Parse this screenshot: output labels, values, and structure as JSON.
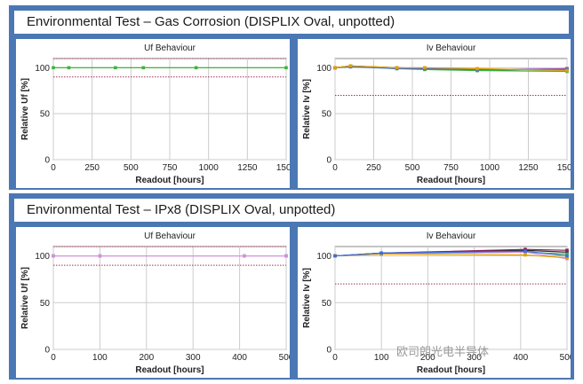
{
  "panels": [
    {
      "title": "Environmental Test – Gas Corrosion (DISPLIX Oval, unpotted)"
    },
    {
      "title": "Environmental Test – IPx8 (DISPLIX Oval, unpotted)"
    }
  ],
  "watermark": {
    "text": "欧司朗光电半导体"
  },
  "colors": {
    "panel_bg": "#4b78b4",
    "limit_line": "#a0305a",
    "grid": "#cccccc"
  },
  "chart_data": [
    {
      "type": "line",
      "title": "Uf Behaviour",
      "xlabel": "Readout [hours]",
      "ylabel": "Relative Uf [%]",
      "xlim": [
        0,
        1500
      ],
      "ylim": [
        0,
        110
      ],
      "xticks": [
        0,
        250,
        500,
        750,
        1000,
        1250,
        1500
      ],
      "yticks": [
        0,
        50,
        100
      ],
      "xtick_labels": [
        "0",
        "250",
        "500",
        "750",
        "1000",
        "1250",
        "1500"
      ],
      "ytick_labels": [
        "0",
        "50",
        "100"
      ],
      "limits": [
        110,
        90
      ],
      "series": [
        {
          "color": "#3cb43c",
          "x": [
            0,
            100,
            400,
            580,
            920,
            1500
          ],
          "y": [
            100,
            100,
            100,
            100,
            100,
            100
          ]
        }
      ]
    },
    {
      "type": "line",
      "title": "Iv Behaviour",
      "xlabel": "Readout [hours]",
      "ylabel": "Relative Iv [%]",
      "xlim": [
        0,
        1500
      ],
      "ylim": [
        0,
        110
      ],
      "xticks": [
        0,
        250,
        500,
        750,
        1000,
        1250,
        1500
      ],
      "yticks": [
        0,
        50,
        100
      ],
      "xtick_labels": [
        "0",
        "250",
        "500",
        "750",
        "1000",
        "1250",
        "1500"
      ],
      "ytick_labels": [
        "0",
        "50",
        "100"
      ],
      "limits": [
        70
      ],
      "series": [
        {
          "color": "#2a2a2a",
          "x": [
            0,
            100,
            400,
            580,
            920,
            1500
          ],
          "y": [
            100,
            102,
            100,
            99,
            97,
            99
          ]
        },
        {
          "color": "#3cb43c",
          "x": [
            0,
            100,
            400,
            580,
            920,
            1500
          ],
          "y": [
            100,
            102,
            99,
            98,
            97,
            96
          ]
        },
        {
          "color": "#b050b0",
          "x": [
            0,
            100,
            400,
            580,
            920,
            1500
          ],
          "y": [
            100,
            101,
            100,
            99,
            98,
            99
          ]
        },
        {
          "color": "#3a6fd8",
          "x": [
            0,
            100,
            400,
            580,
            920,
            1500
          ],
          "y": [
            100,
            101,
            99,
            99,
            98,
            98
          ]
        },
        {
          "color": "#e0a000",
          "x": [
            0,
            100,
            400,
            580,
            920,
            1500
          ],
          "y": [
            100,
            102,
            100,
            100,
            99,
            97
          ]
        }
      ]
    },
    {
      "type": "line",
      "title": "Uf Behaviour",
      "xlabel": "Readout [hours]",
      "ylabel": "Relative Uf [%]",
      "xlim": [
        0,
        500
      ],
      "ylim": [
        0,
        110
      ],
      "xticks": [
        0,
        100,
        200,
        300,
        400,
        500
      ],
      "yticks": [
        0,
        50,
        100
      ],
      "xtick_labels": [
        "0",
        "100",
        "200",
        "300",
        "400",
        "500"
      ],
      "ytick_labels": [
        "0",
        "50",
        "100"
      ],
      "limits": [
        110,
        90
      ],
      "series": [
        {
          "color": "#6070d8",
          "x": [
            0,
            100,
            410,
            500
          ],
          "y": [
            100,
            100,
            100,
            100
          ]
        },
        {
          "color": "#d890d8",
          "x": [
            0,
            100,
            410,
            500
          ],
          "y": [
            100,
            100,
            100,
            100
          ]
        }
      ]
    },
    {
      "type": "line",
      "title": "Iv Behaviour",
      "xlabel": "Readout [hours]",
      "ylabel": "Relative Iv [%]",
      "xlim": [
        0,
        500
      ],
      "ylim": [
        0,
        110
      ],
      "xticks": [
        0,
        100,
        200,
        300,
        400,
        500
      ],
      "yticks": [
        0,
        50,
        100
      ],
      "xtick_labels": [
        "0",
        "100",
        "200",
        "300",
        "400",
        "500"
      ],
      "ytick_labels": [
        "0",
        "50",
        "100"
      ],
      "limits": [
        70
      ],
      "series": [
        {
          "color": "#2a2a2a",
          "x": [
            0,
            100,
            410,
            500
          ],
          "y": [
            100,
            103,
            106,
            104
          ]
        },
        {
          "color": "#8a2060",
          "x": [
            0,
            100,
            410,
            500
          ],
          "y": [
            100,
            103,
            107,
            106
          ]
        },
        {
          "color": "#3cb43c",
          "x": [
            0,
            100,
            410,
            500
          ],
          "y": [
            100,
            102,
            104,
            102
          ]
        },
        {
          "color": "#d890d8",
          "x": [
            0,
            100,
            410,
            500
          ],
          "y": [
            100,
            102,
            104,
            97
          ]
        },
        {
          "color": "#e0a000",
          "x": [
            0,
            100,
            410,
            500
          ],
          "y": [
            100,
            102,
            101,
            98
          ]
        },
        {
          "color": "#3a6fd8",
          "x": [
            0,
            100,
            410,
            500
          ],
          "y": [
            100,
            103,
            105,
            100
          ]
        }
      ]
    }
  ]
}
